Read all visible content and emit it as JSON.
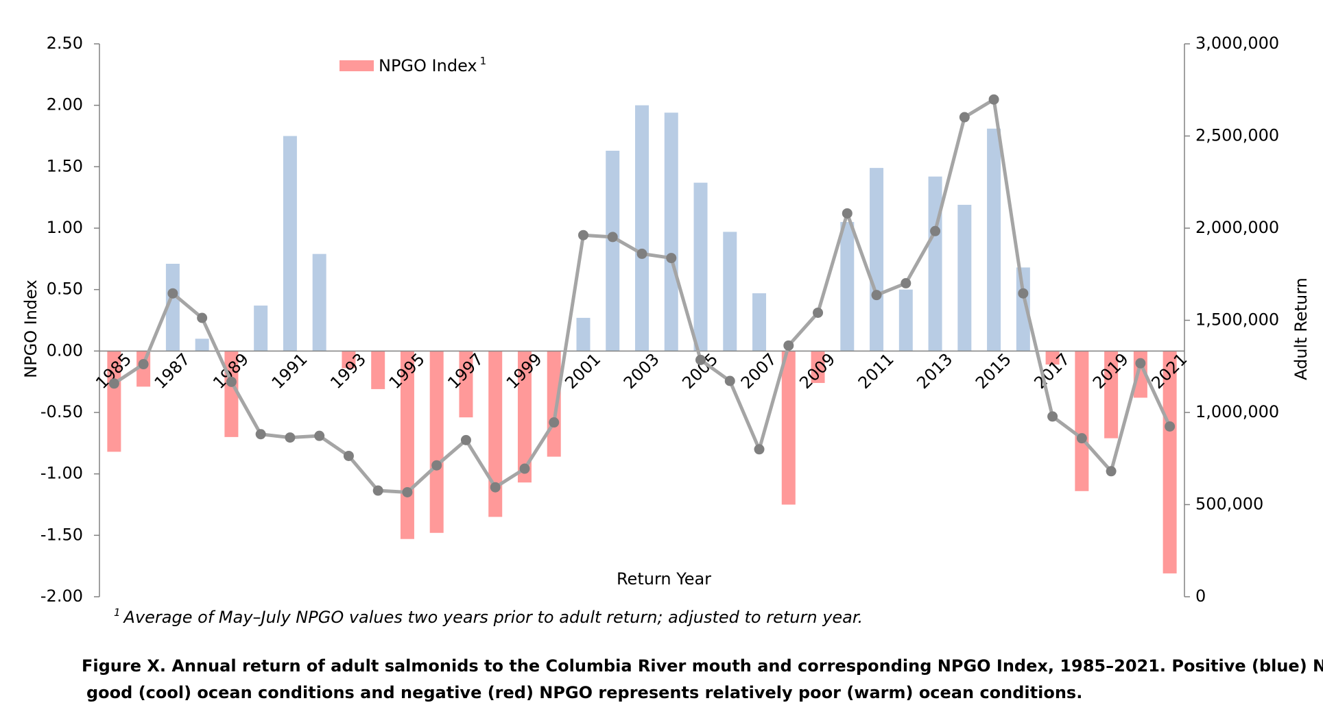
{
  "chart_data": {
    "type": "bar-line",
    "x_label": "Return Year",
    "y_label": "NPGO Index",
    "y2_label": "Adult Return",
    "categories": [
      "1985",
      null,
      "1987",
      null,
      "1989",
      null,
      "1991",
      null,
      "1993",
      null,
      "1995",
      null,
      "1997",
      null,
      "1999",
      null,
      "2001",
      null,
      "2003",
      null,
      "2005",
      null,
      "2007",
      null,
      "2009",
      null,
      "2011",
      null,
      "2013",
      null,
      "2015",
      null,
      "2017",
      null,
      "2019",
      null,
      "2021"
    ],
    "series": [
      {
        "name": "NPGO Index",
        "type": "bar",
        "color": "#ff9999",
        "positive_color": "#b8cce4",
        "values": [
          -0.82,
          -0.29,
          0.71,
          0.1,
          -0.7,
          0.37,
          1.75,
          0.79,
          -0.14,
          -0.31,
          -1.53,
          -1.48,
          -0.54,
          -1.35,
          -1.07,
          -0.86,
          0.27,
          1.63,
          2.0,
          1.94,
          1.37,
          0.97,
          0.47,
          -1.25,
          -0.26,
          1.05,
          1.49,
          0.5,
          1.42,
          1.19,
          1.81,
          0.68,
          -0.11,
          -1.14,
          -0.71,
          -0.38,
          -1.81
        ]
      },
      {
        "type": "line",
        "axis": "y2",
        "color": "#a5a5a5",
        "marker_color": "#7f7f7f",
        "values": [
          1157000,
          1262000,
          1646000,
          1513000,
          1166000,
          882000,
          864000,
          873000,
          764000,
          576000,
          567000,
          713000,
          850000,
          594000,
          695000,
          946000,
          1962000,
          1952000,
          1861000,
          1838000,
          1285000,
          1171000,
          800000,
          1363000,
          1541000,
          2080000,
          1637000,
          1701000,
          1984000,
          2602000,
          2698000,
          1646000,
          978000,
          860000,
          681000,
          1267000,
          924000
        ]
      }
    ],
    "ylim": [
      -2,
      2.5
    ],
    "yticks": [
      {
        "value": -2,
        "label": "-2.00"
      },
      {
        "value": -1.5,
        "label": "-1.50"
      },
      {
        "value": -1,
        "label": "-1.00"
      },
      {
        "value": -0.5,
        "label": "-0.50"
      },
      {
        "value": 0,
        "label": "0.00"
      },
      {
        "value": 0.5,
        "label": "0.50"
      },
      {
        "value": 1,
        "label": "1.00"
      },
      {
        "value": 1.5,
        "label": "1.50"
      },
      {
        "value": 2,
        "label": "2.00"
      },
      {
        "value": 2.5,
        "label": "2.50"
      }
    ],
    "y2lim": [
      0,
      3000000
    ],
    "y2ticks": [
      0,
      {
        "value": 500000,
        "label": "500,000"
      },
      {
        "value": 1000000,
        "label": "1,000,000"
      },
      {
        "value": 1500000,
        "label": "1,500,000"
      },
      {
        "value": 2000000,
        "label": "2,000,000"
      },
      {
        "value": 2500000,
        "label": "2,500,000"
      },
      {
        "value": 3000000,
        "label": "3,000,000"
      }
    ],
    "grid": false,
    "legend": "top-left",
    "footnote": {
      "marker": "1",
      "text": "Average of May–July NPGO values two years prior to adult return; adjusted to return year."
    },
    "caption": [
      "Figure X.  Annual return of adult salmonids to the Columbia River mouth and corresponding NPGO Index, 1985–2021.  Positive (blue) NP",
      "good (cool) ocean conditions and negative (red) NPGO represents relatively poor (warm) ocean conditions."
    ]
  }
}
